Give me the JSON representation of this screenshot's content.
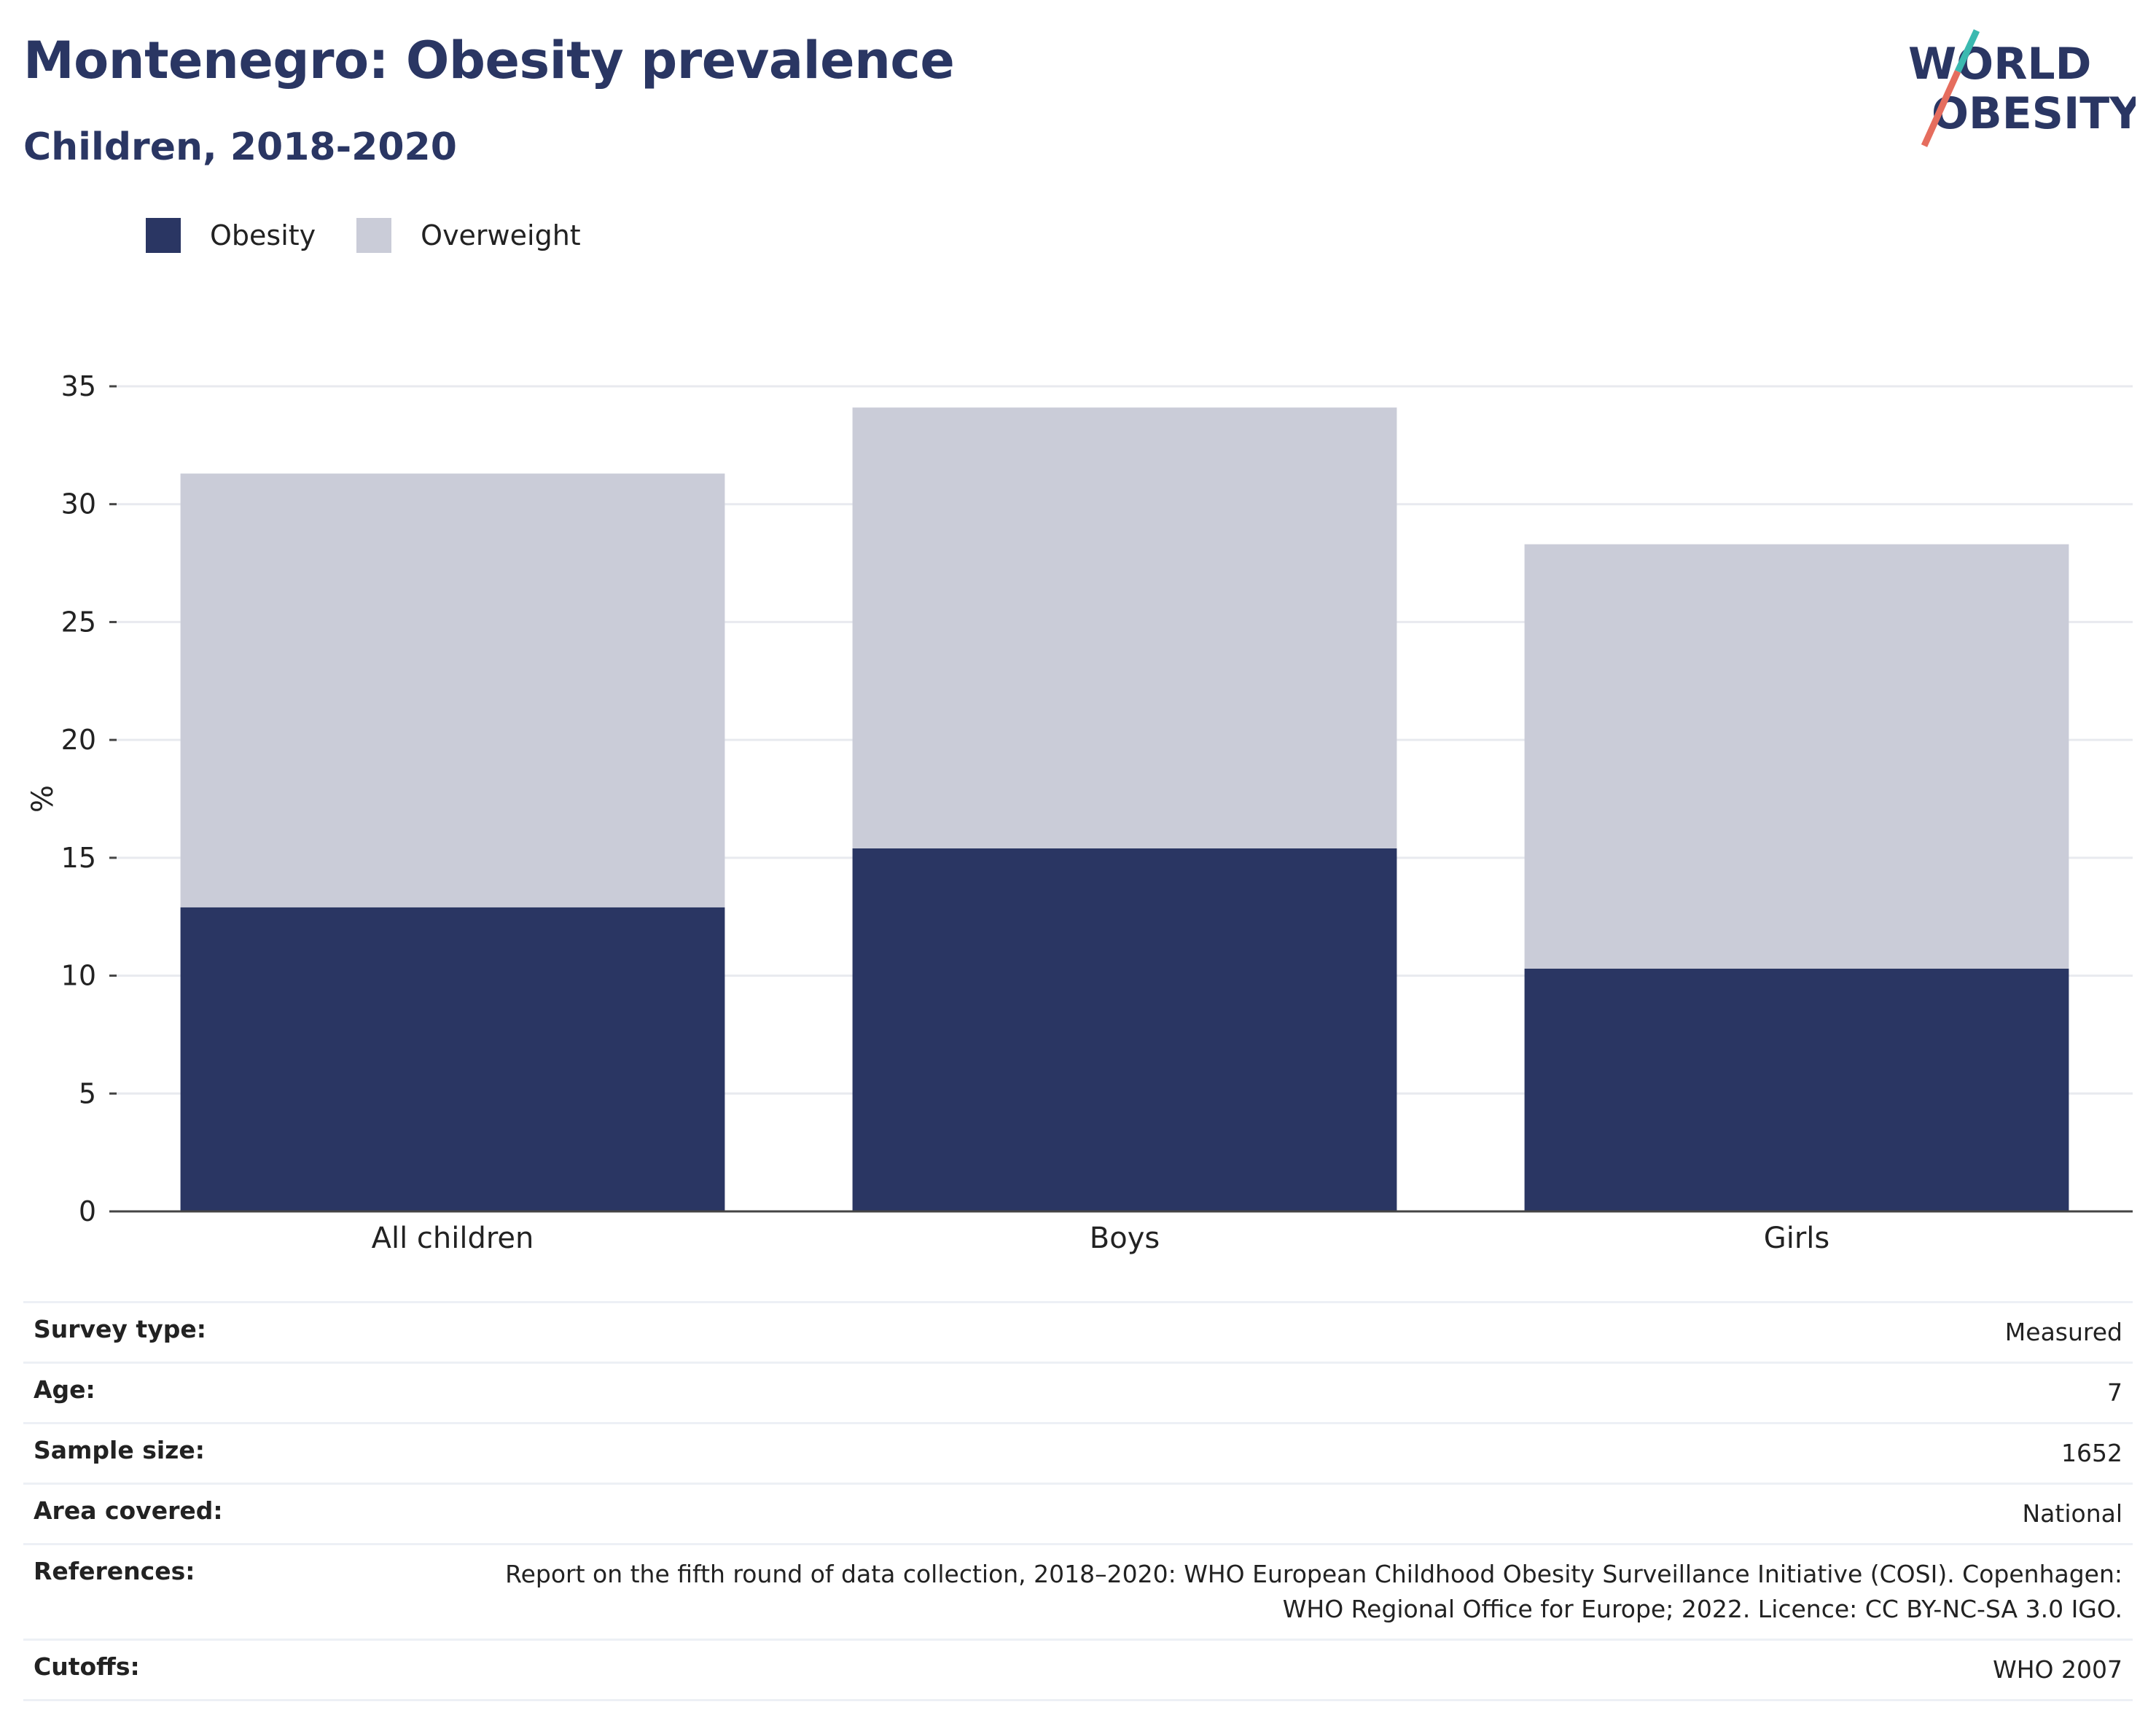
{
  "header": {
    "title": "Montenegro: Obesity prevalence",
    "subtitle": "Children, 2018-2020",
    "logo_line1": "WORLD",
    "logo_line2": "OBESITY"
  },
  "legend": {
    "items": [
      {
        "label": "Obesity",
        "color": "#2a3663"
      },
      {
        "label": "Overweight",
        "color": "#caccd8"
      }
    ]
  },
  "chart_data": {
    "type": "bar",
    "stacked": true,
    "categories": [
      "All children",
      "Boys",
      "Girls"
    ],
    "series": [
      {
        "name": "Obesity",
        "color": "#2a3663",
        "values": [
          12.9,
          15.4,
          10.3
        ]
      },
      {
        "name": "Overweight",
        "color": "#caccd8",
        "values": [
          18.4,
          18.7,
          18.0
        ]
      }
    ],
    "ylabel": "%",
    "ylim": [
      0,
      35
    ],
    "yticks": [
      0,
      5,
      10,
      15,
      20,
      25,
      30,
      35
    ],
    "grid": true,
    "legend_position": "top-left"
  },
  "info": {
    "rows": [
      {
        "key": "Survey type:",
        "value": "Measured"
      },
      {
        "key": "Age:",
        "value": "7"
      },
      {
        "key": "Sample size:",
        "value": "1652"
      },
      {
        "key": "Area covered:",
        "value": "National"
      },
      {
        "key": "References:",
        "value_line1": "Report on the fifth round of data collection, 2018–2020: WHO European Childhood Obesity Surveillance Initiative (COSI). Copenhagen:",
        "value_line2": "WHO Regional Office for Europe; 2022. Licence: CC BY-NC-SA 3.0 IGO."
      },
      {
        "key": "Cutoffs:",
        "value": "WHO 2007"
      }
    ]
  }
}
